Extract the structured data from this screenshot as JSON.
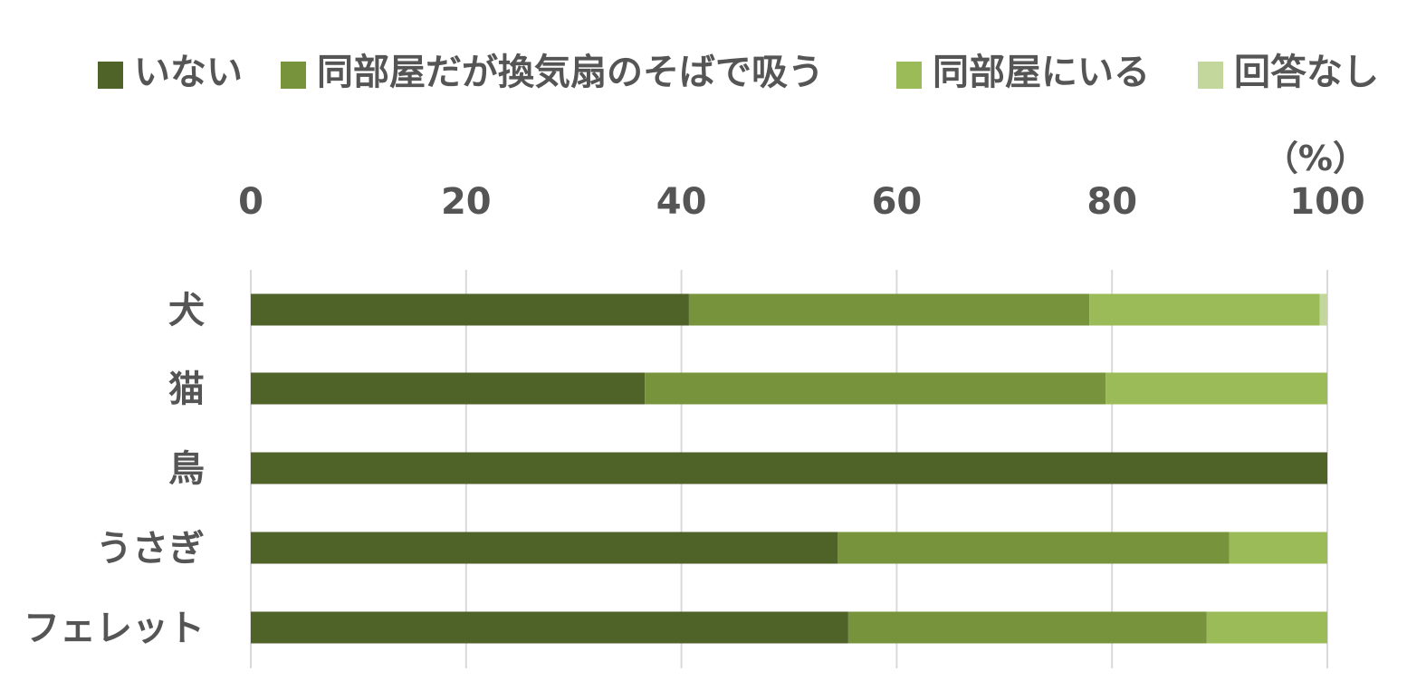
{
  "chart_data": {
    "type": "bar",
    "orientation": "horizontal",
    "stacked": true,
    "unit_label": "（%）",
    "categories": [
      "犬",
      "猫",
      "鳥",
      "うさぎ",
      "フェレット"
    ],
    "series": [
      {
        "name": "いない",
        "color": "#4f6228",
        "values": [
          40.7,
          36.6,
          100,
          54.5,
          55.5
        ]
      },
      {
        "name": "同部屋だが換気扇のそばで吸う",
        "color": "#77933c",
        "values": [
          37.2,
          42.8,
          0,
          36.4,
          33.3
        ]
      },
      {
        "name": "同部屋にいる",
        "color": "#9bbb59",
        "values": [
          21.4,
          20.6,
          0,
          9.1,
          11.2
        ]
      },
      {
        "name": "回答なし",
        "color": "#c3d69b",
        "values": [
          0.7,
          0,
          0,
          0,
          0
        ]
      }
    ],
    "x_ticks": [
      "0",
      "20",
      "40",
      "60",
      "80",
      "100"
    ],
    "xlim": [
      0,
      100
    ],
    "x_axis_position": "top",
    "grid": true,
    "legend_position": "top"
  }
}
